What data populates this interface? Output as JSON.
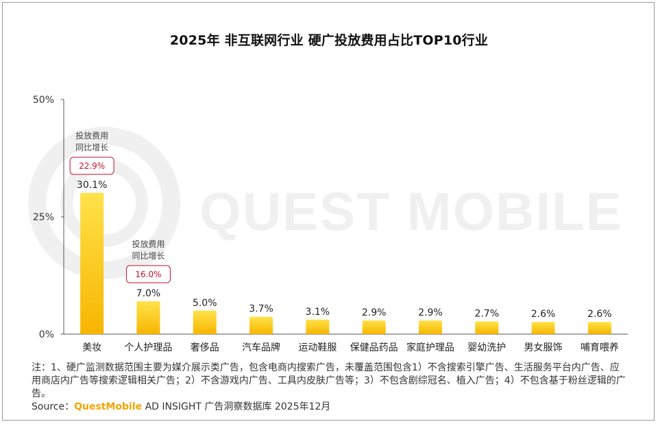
{
  "title": "2025年 非互联网行业 硬广投放费用占比TOP10行业",
  "watermark": "QUEST MOBILE",
  "colors": {
    "bar_top": "#FFE24A",
    "bar_bottom": "#F7B500",
    "badge_border": "#C8102E",
    "axis": "#555555",
    "watermark": "#F0F0F0"
  },
  "chart_data": {
    "type": "bar",
    "categories": [
      "美妆",
      "个人护理品",
      "奢侈品",
      "汽车品牌",
      "运动鞋服",
      "保健品药品",
      "家庭护理品",
      "婴幼洗护",
      "男女服饰",
      "哺育喂养"
    ],
    "values": [
      30.1,
      7.0,
      5.0,
      3.7,
      3.1,
      2.9,
      2.9,
      2.7,
      2.6,
      2.6
    ],
    "value_labels": [
      "30.1%",
      "7.0%",
      "5.0%",
      "3.7%",
      "3.1%",
      "2.9%",
      "2.9%",
      "2.7%",
      "2.6%",
      "2.6%"
    ],
    "ylim": [
      0,
      50
    ],
    "yticks": [
      "0%",
      "25%",
      "50%"
    ],
    "ytick_values": [
      0,
      25,
      50
    ],
    "grid": false,
    "annotations": [
      {
        "category": "美妆",
        "label_lines": [
          "投放费用",
          "同比增长"
        ],
        "value": "22.9%"
      },
      {
        "category": "个人护理品",
        "label_lines": [
          "投放费用",
          "同比增长"
        ],
        "value": "16.0%"
      }
    ]
  },
  "note": "注：1、硬广监测数据范围主要为媒介展示类广告，包含电商内搜索广告，未覆盖范围包含1）不含搜索引擎广告、生活服务平台内广告、应用商店内广告等搜索逻辑相关广告；2）不含游戏内广告、工具内皮肤广告等；3）不包含剧综冠名、植入广告；4）不包含基于粉丝逻辑的广告。",
  "source": {
    "prefix": "Source：",
    "brand": "QuestMobile",
    "suffix": "AD INSIGHT 广告洞察数据库 2025年12月"
  }
}
